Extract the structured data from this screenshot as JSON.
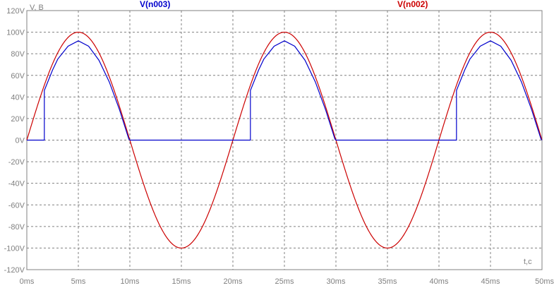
{
  "chart_data": {
    "type": "line",
    "y_unit_label": "V, В",
    "x_unit_label": "t,c",
    "grid": true,
    "xlim": [
      0,
      50
    ],
    "ylim": [
      -120,
      120
    ],
    "x_ticks": [
      0,
      5,
      10,
      15,
      20,
      25,
      30,
      35,
      40,
      45,
      50
    ],
    "x_tick_labels": [
      "0ms",
      "5ms",
      "10ms",
      "15ms",
      "20ms",
      "25ms",
      "30ms",
      "35ms",
      "40ms",
      "45ms",
      "50ms"
    ],
    "y_ticks": [
      120,
      100,
      80,
      60,
      40,
      20,
      0,
      -20,
      -40,
      -60,
      -80,
      -100,
      -120
    ],
    "y_tick_labels": [
      "120V",
      "100V",
      "80V",
      "60V",
      "40V",
      "20V",
      "0V",
      "-20V",
      "-40V",
      "-60V",
      "-80V",
      "-100V",
      "-120V"
    ],
    "series": [
      {
        "name": "V(n003)",
        "color": "#0000cc",
        "description_points": [
          [
            0,
            0
          ],
          [
            1.7,
            0
          ],
          [
            1.7,
            46
          ],
          [
            2.5,
            65
          ],
          [
            3,
            75
          ],
          [
            4,
            87
          ],
          [
            5,
            92
          ],
          [
            6,
            87
          ],
          [
            7,
            74
          ],
          [
            8,
            54
          ],
          [
            9,
            28
          ],
          [
            9.9,
            1
          ],
          [
            10,
            0
          ],
          [
            13,
            0
          ],
          [
            17,
            0
          ],
          [
            21.7,
            0
          ],
          [
            21.7,
            46
          ],
          [
            22.5,
            65
          ],
          [
            23,
            75
          ],
          [
            24,
            87
          ],
          [
            25,
            92
          ],
          [
            26,
            87
          ],
          [
            27,
            74
          ],
          [
            28,
            54
          ],
          [
            29,
            28
          ],
          [
            29.9,
            1
          ],
          [
            30,
            0
          ],
          [
            33,
            0
          ],
          [
            37,
            0
          ],
          [
            41.7,
            0
          ],
          [
            41.7,
            46
          ],
          [
            42.5,
            65
          ],
          [
            43,
            75
          ],
          [
            44,
            87
          ],
          [
            45,
            92
          ],
          [
            46,
            87
          ],
          [
            47,
            74
          ],
          [
            48,
            54
          ],
          [
            49,
            28
          ],
          [
            49.9,
            1
          ],
          [
            50,
            0
          ]
        ]
      },
      {
        "name": "V(n002)",
        "color": "#cc0000",
        "amplitude": 100,
        "period_ms": 20,
        "phase": 0
      }
    ]
  }
}
